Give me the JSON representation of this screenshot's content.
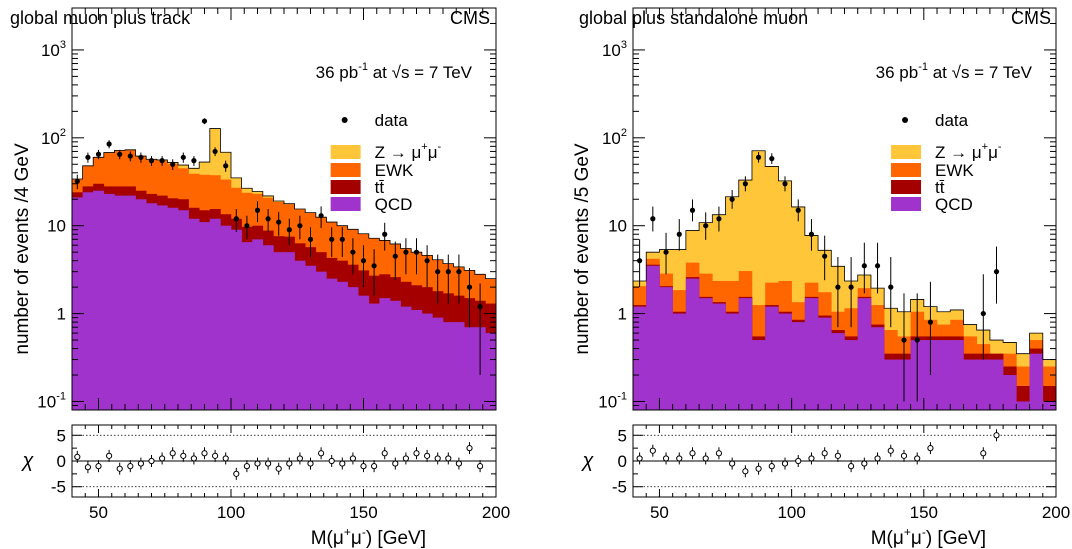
{
  "chart_data": [
    {
      "type": "area",
      "title": "global muon plus track",
      "experiment_label": "CMS",
      "lumi_label": {
        "lumi": "36 pb",
        "lumi_exp": "-1",
        "energy": "at √s = 7 TeV"
      },
      "xlabel": {
        "main": "M(μ",
        "sup1": "+",
        "mid": "μ",
        "sup2": "-",
        "end": ")",
        "unit": "[GeV]"
      },
      "ylabel": "number of events /4 GeV",
      "ratio_ylabel": "χ",
      "xlim": [
        40,
        200
      ],
      "ylim": [
        0.08,
        3000
      ],
      "yscale": "log",
      "ratio_ylim": [
        -7,
        7
      ],
      "bin_width": 4,
      "x_ticks": [
        50,
        100,
        150,
        200
      ],
      "y_ticks": [
        {
          "v": 0.1,
          "label": "10",
          "exp": "-1"
        },
        {
          "v": 1,
          "label": "1",
          "exp": ""
        },
        {
          "v": 10,
          "label": "10",
          "exp": ""
        },
        {
          "v": 100,
          "label": "10",
          "exp": "2"
        },
        {
          "v": 1000,
          "label": "10",
          "exp": "3"
        }
      ],
      "ratio_ticks": [
        5,
        0,
        -5
      ],
      "legend_position": "right",
      "legend": [
        {
          "key": "data",
          "label": "data",
          "style": "marker"
        },
        {
          "key": "Z",
          "label": "Z → μ",
          "sup1": "+",
          "mid": "μ",
          "sup2": "-",
          "color": "#FFC639"
        },
        {
          "key": "EWK",
          "label": "EWK",
          "color": "#FF6600"
        },
        {
          "key": "tt",
          "label": "tt̄",
          "color": "#A50000"
        },
        {
          "key": "QCD",
          "label": "QCD",
          "color": "#A033CC"
        }
      ],
      "stack_order": [
        "QCD",
        "tt",
        "EWK",
        "Z"
      ],
      "x_edges": [
        40,
        44,
        48,
        52,
        56,
        60,
        64,
        68,
        72,
        76,
        80,
        84,
        88,
        92,
        96,
        100,
        104,
        108,
        112,
        116,
        120,
        124,
        128,
        132,
        136,
        140,
        144,
        148,
        152,
        156,
        160,
        164,
        168,
        172,
        176,
        180,
        184,
        188,
        192,
        196,
        200
      ],
      "series": [
        {
          "name": "QCD",
          "values": [
            21,
            24,
            25,
            23,
            22,
            22,
            20,
            18,
            17,
            16,
            15,
            12,
            11,
            12,
            10,
            9,
            6.5,
            7,
            6,
            5,
            5,
            4,
            3.5,
            3,
            2.5,
            2.3,
            2.0,
            1.6,
            1.3,
            1.5,
            1.4,
            1.2,
            1.1,
            1.0,
            0.9,
            0.8,
            0.8,
            0.7,
            0.7,
            0.6
          ]
        },
        {
          "name": "tt",
          "values": [
            3,
            4,
            5,
            5,
            6,
            6,
            5,
            5,
            5,
            4.5,
            5,
            4,
            4,
            3.5,
            3.5,
            3,
            3.2,
            3,
            2.8,
            2.6,
            2.5,
            2.3,
            2.2,
            2,
            1.8,
            1.7,
            1.6,
            1.5,
            1.4,
            1.3,
            1.2,
            1.1,
            1.0,
            1.0,
            0.9,
            0.9,
            0.8,
            0.8,
            0.7,
            0.7
          ]
        },
        {
          "name": "EWK",
          "values": [
            10,
            20,
            30,
            40,
            44,
            45,
            37,
            34,
            33,
            30,
            25,
            23,
            23,
            22,
            20,
            15,
            14,
            13,
            12,
            11,
            10,
            9,
            8.3,
            7.5,
            6.7,
            6,
            5.5,
            5,
            4.5,
            4,
            3.6,
            3.2,
            2.9,
            2.6,
            2.3,
            2.0,
            1.8,
            1.6,
            1.4,
            1.2
          ]
        },
        {
          "name": "Z",
          "values": [
            0,
            0,
            0,
            0,
            0,
            0,
            0,
            0,
            1,
            2,
            4,
            6,
            15,
            90,
            35,
            8,
            3,
            1.5,
            1,
            0.5,
            0.3,
            0.2,
            0.1,
            0,
            0,
            0,
            0,
            0,
            0,
            0,
            0,
            0,
            0,
            0,
            0,
            0,
            0,
            0,
            0,
            0
          ]
        }
      ],
      "data_points": {
        "x": [
          42,
          46,
          50,
          54,
          58,
          62,
          66,
          70,
          74,
          78,
          82,
          86,
          90,
          94,
          98,
          102,
          106,
          110,
          114,
          118,
          122,
          126,
          130,
          134,
          138,
          142,
          146,
          150,
          154,
          158,
          162,
          166,
          170,
          174,
          178,
          182,
          186,
          190,
          194
        ],
        "y": [
          32,
          60,
          65,
          85,
          65,
          62,
          60,
          55,
          55,
          50,
          60,
          55,
          155,
          70,
          48,
          12,
          10,
          15,
          12,
          11,
          9,
          10,
          7,
          13,
          7,
          7,
          5,
          4,
          3.5,
          8,
          4.5,
          5,
          5,
          4,
          3,
          3,
          3,
          2,
          1.2
        ],
        "err_low": [
          6,
          8,
          8,
          9,
          8,
          8,
          8,
          7,
          7,
          7,
          8,
          7,
          12,
          8,
          7,
          3.5,
          3,
          4,
          3.5,
          3.3,
          3,
          3,
          2.6,
          3.6,
          2.6,
          2.6,
          2.2,
          2,
          1.9,
          2.8,
          2.1,
          2.2,
          2.2,
          2,
          1.7,
          1.7,
          1.7,
          1.3,
          1.0
        ],
        "err_high": [
          6,
          8,
          8,
          9,
          8,
          8,
          8,
          7,
          7,
          7,
          8,
          7,
          12,
          8,
          7,
          3.5,
          3,
          4,
          3.5,
          3.3,
          3,
          3,
          2.6,
          3.6,
          2.6,
          2.6,
          2.2,
          2,
          1.9,
          2.8,
          2.1,
          2.2,
          2.2,
          2,
          1.7,
          1.7,
          1.7,
          1.3,
          1.0
        ],
        "chi": [
          0.8,
          -1.2,
          -1.0,
          1.0,
          -1.5,
          -1.0,
          -0.5,
          0,
          0.5,
          1.5,
          1.0,
          0.5,
          1.5,
          1.0,
          0.5,
          -2.5,
          -1.0,
          -0.5,
          -0.5,
          -1.5,
          -0.5,
          0.5,
          -0.5,
          1.5,
          0,
          -0.5,
          0.5,
          -1.0,
          -1.0,
          1.5,
          -0.5,
          0.5,
          1.5,
          1.0,
          0.5,
          0.5,
          -0.5,
          2.5,
          -1.0
        ]
      }
    },
    {
      "type": "area",
      "title": "global plus standalone muon",
      "experiment_label": "CMS",
      "lumi_label": {
        "lumi": "36 pb",
        "lumi_exp": "-1",
        "energy": "at √s = 7 TeV"
      },
      "xlabel": {
        "main": "M(μ",
        "sup1": "+",
        "mid": "μ",
        "sup2": "-",
        "end": ")",
        "unit": "[GeV]"
      },
      "ylabel": "number of events /5 GeV",
      "ratio_ylabel": "χ",
      "xlim": [
        40,
        200
      ],
      "ylim": [
        0.08,
        3000
      ],
      "yscale": "log",
      "ratio_ylim": [
        -7,
        7
      ],
      "bin_width": 5,
      "x_ticks": [
        50,
        100,
        150,
        200
      ],
      "y_ticks": [
        {
          "v": 0.1,
          "label": "10",
          "exp": "-1"
        },
        {
          "v": 1,
          "label": "1",
          "exp": ""
        },
        {
          "v": 10,
          "label": "10",
          "exp": ""
        },
        {
          "v": 100,
          "label": "10",
          "exp": "2"
        },
        {
          "v": 1000,
          "label": "10",
          "exp": "3"
        }
      ],
      "ratio_ticks": [
        5,
        0,
        -5
      ],
      "legend_position": "right",
      "legend": [
        {
          "key": "data",
          "label": "data",
          "style": "marker"
        },
        {
          "key": "Z",
          "label": "Z → μ",
          "sup1": "+",
          "mid": "μ",
          "sup2": "-",
          "color": "#FFC639"
        },
        {
          "key": "EWK",
          "label": "EWK",
          "color": "#FF6600"
        },
        {
          "key": "tt",
          "label": "tt̄",
          "color": "#A50000"
        },
        {
          "key": "QCD",
          "label": "QCD",
          "color": "#A033CC"
        }
      ],
      "stack_order": [
        "QCD",
        "tt",
        "EWK",
        "Z"
      ],
      "x_edges": [
        40,
        45,
        50,
        55,
        60,
        65,
        70,
        75,
        80,
        85,
        90,
        95,
        100,
        105,
        110,
        115,
        120,
        125,
        130,
        135,
        140,
        145,
        150,
        155,
        160,
        165,
        170,
        175,
        180,
        185,
        190,
        195,
        200
      ],
      "series": [
        {
          "name": "QCD",
          "values": [
            1.2,
            3.5,
            2.0,
            1.0,
            2.5,
            1.5,
            1.3,
            1.0,
            1.5,
            0.5,
            1.2,
            1.0,
            0.8,
            1.5,
            0.9,
            0.6,
            0.5,
            1.5,
            0.7,
            0.3,
            0.3,
            0.5,
            0.5,
            0.5,
            0.5,
            0.3,
            0.3,
            0.3,
            0.2,
            0.1,
            0.35,
            0.1
          ]
        },
        {
          "name": "tt",
          "values": [
            0.05,
            0.1,
            0.05,
            0.05,
            0.1,
            0.05,
            0.05,
            0.05,
            0.05,
            0.05,
            0.05,
            0.05,
            0.05,
            0.05,
            0.05,
            0.05,
            0.05,
            0.05,
            0.05,
            0.05,
            0.05,
            0.05,
            0.05,
            0.05,
            0.05,
            0.05,
            0.05,
            0.05,
            0.05,
            0.05,
            0.05,
            0.05
          ]
        },
        {
          "name": "EWK",
          "values": [
            0.8,
            0.6,
            0.8,
            0.8,
            1.2,
            1.3,
            1.0,
            1.3,
            1.5,
            0.7,
            1.0,
            1.3,
            0.5,
            0.7,
            0.8,
            0.4,
            0.6,
            0.4,
            0.5,
            0.3,
            0.2,
            0.5,
            0.3,
            0.2,
            0.3,
            0.2,
            0.1,
            0.0,
            0.1,
            0.1,
            0.1,
            0.1
          ]
        },
        {
          "name": "Z",
          "values": [
            0.3,
            0.8,
            2.5,
            3.5,
            5,
            8,
            11,
            19,
            30,
            70,
            45,
            30,
            15,
            5.5,
            3.5,
            2.4,
            1.2,
            0.8,
            0.7,
            0.5,
            0.5,
            0.4,
            0.35,
            0.3,
            0.25,
            0.2,
            0.2,
            0.15,
            0.12,
            0.1,
            0.1,
            0.05
          ]
        }
      ],
      "data_points": {
        "x": [
          42.5,
          47.5,
          52.5,
          57.5,
          62.5,
          67.5,
          72.5,
          77.5,
          82.5,
          87.5,
          92.5,
          97.5,
          102.5,
          107.5,
          112.5,
          117.5,
          122.5,
          127.5,
          132.5,
          137.5,
          142.5,
          147.5,
          152.5,
          172.5,
          177.5
        ],
        "y": [
          4,
          12,
          5,
          8,
          15,
          10,
          12,
          20,
          30,
          60,
          58,
          30,
          15,
          8,
          4.5,
          2,
          2,
          3.5,
          3.5,
          2,
          0.5,
          0.5,
          0.8,
          1,
          3
        ],
        "err_low": [
          2,
          3.4,
          2.2,
          2.8,
          3.8,
          3.1,
          3.4,
          4.4,
          5.4,
          7.7,
          7.6,
          5.4,
          3.8,
          2.8,
          2.1,
          1.3,
          1.3,
          1.8,
          1.8,
          1.3,
          0.4,
          0.4,
          0.6,
          0.7,
          1.7
        ],
        "err_high": [
          3,
          4.5,
          3.3,
          3.9,
          4.9,
          4.2,
          4.5,
          5.5,
          6.5,
          8.8,
          8.7,
          6.5,
          4.9,
          3.9,
          3.2,
          2.4,
          2.4,
          2.9,
          2.9,
          2.4,
          1.2,
          1.2,
          1.5,
          1.8,
          2.8
        ],
        "chi": [
          0.5,
          2.0,
          0.5,
          0.5,
          1.5,
          0.5,
          1.5,
          -0.5,
          -2.0,
          -1.5,
          -1.0,
          -0.5,
          0,
          0.5,
          1.5,
          1.0,
          -1.0,
          -0.5,
          0.5,
          2.0,
          1.0,
          0.5,
          2.5,
          1.5,
          5.0
        ]
      }
    }
  ]
}
